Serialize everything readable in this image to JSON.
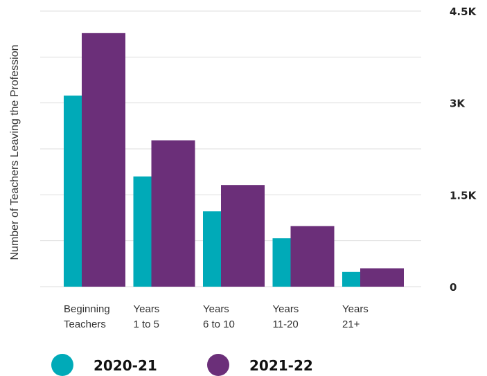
{
  "chart_data": {
    "type": "bar",
    "ylabel": "Number of Teachers Leaving the Profession",
    "categories": [
      [
        "Beginning",
        "Teachers"
      ],
      [
        "Years",
        "1 to 5"
      ],
      [
        "Years",
        "6 to 10"
      ],
      [
        "Years",
        "11-20"
      ],
      [
        "Years",
        "21+"
      ]
    ],
    "series": [
      {
        "name": "2020-21",
        "color": "#00aab8",
        "values": [
          3120,
          1800,
          1230,
          790,
          240
        ]
      },
      {
        "name": "2021-22",
        "color": "#6b2f79",
        "values": [
          4140,
          2390,
          1660,
          990,
          300
        ]
      }
    ],
    "ylim": [
      0,
      4500
    ],
    "yticks": [
      {
        "value": 0,
        "label": "0"
      },
      {
        "value": 1500,
        "label": "1.5K"
      },
      {
        "value": 3000,
        "label": "3K"
      },
      {
        "value": 4500,
        "label": "4.5K"
      }
    ],
    "gridlines": [
      0,
      750,
      1500,
      2250,
      3000,
      3750,
      4500
    ],
    "gridline_color": "#dddddd",
    "legend_position": "bottom-left"
  }
}
